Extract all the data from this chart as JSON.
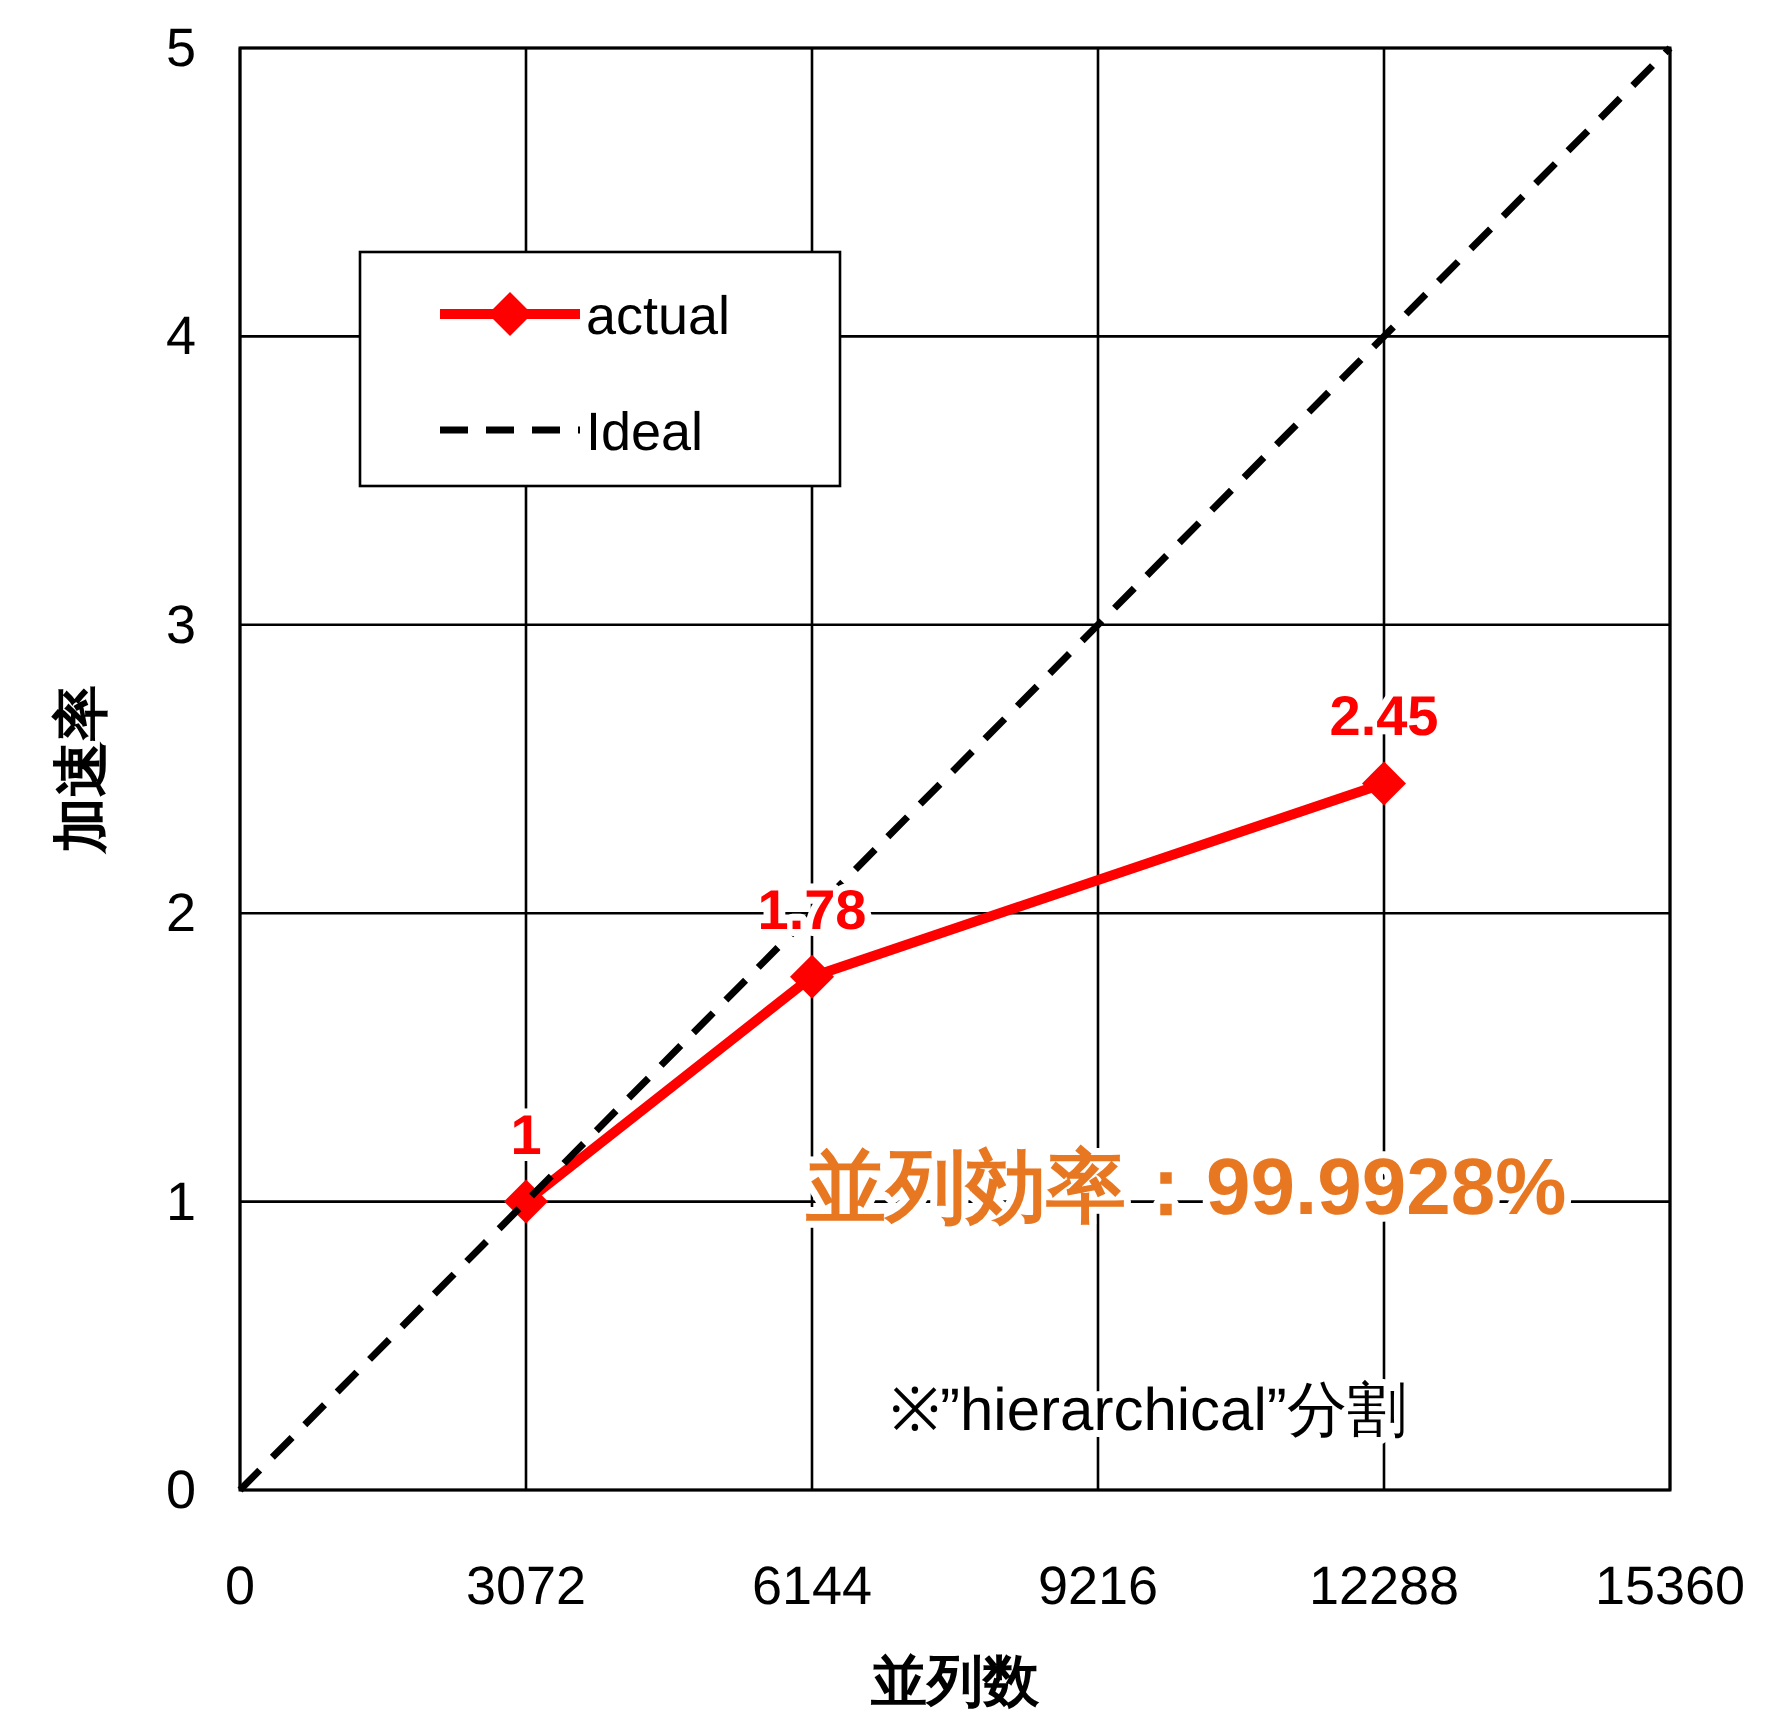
{
  "chart_data": {
    "type": "line",
    "xlabel": "並列数",
    "ylabel": "加速率",
    "xlim": [
      0,
      15360
    ],
    "xticks": [
      0,
      3072,
      6144,
      9216,
      12288,
      15360
    ],
    "ylim": [
      0,
      5
    ],
    "yticks": [
      0,
      1,
      2,
      3,
      4,
      5
    ],
    "grid": true,
    "legend": "top left",
    "series": [
      {
        "name": "actual",
        "color": "#ff0000",
        "x": [
          3072,
          6144,
          12288
        ],
        "values": [
          1,
          1.78,
          2.45
        ],
        "marker": "diamond",
        "line_style": "solid",
        "data_labels": true
      },
      {
        "name": "Ideal",
        "color": "#000000",
        "x": [
          0,
          15360
        ],
        "values": [
          0,
          5
        ],
        "marker": "none",
        "line_style": "dashed"
      }
    ],
    "annotations": [
      "並列効率：99.9928%",
      "※”hierarchical”分割"
    ]
  }
}
